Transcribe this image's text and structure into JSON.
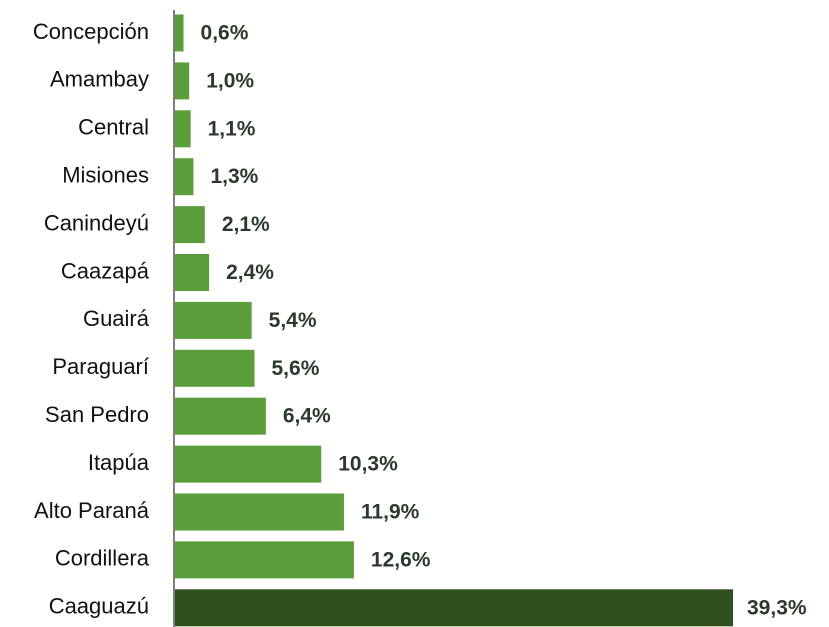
{
  "chart_data": {
    "type": "bar",
    "orientation": "horizontal",
    "title": "",
    "xlabel": "",
    "ylabel": "",
    "unit": "%",
    "categories": [
      "Concepción",
      "Amambay",
      "Central",
      "Misiones",
      "Canindeyú",
      "Caazapá",
      "Guairá",
      "Paraguarí",
      "San Pedro",
      "Itapúa",
      "Alto Paraná",
      "Cordillera",
      "Caaguazú"
    ],
    "values": [
      0.6,
      1.0,
      1.1,
      1.3,
      2.1,
      2.4,
      5.4,
      5.6,
      6.4,
      10.3,
      11.9,
      12.6,
      39.3
    ],
    "value_labels": [
      "0,6%",
      "1,0%",
      "1,1%",
      "1,3%",
      "2,1%",
      "2,4%",
      "5,4%",
      "5,6%",
      "6,4%",
      "10,3%",
      "11,9%",
      "12,6%",
      "39,3%"
    ],
    "xlim": [
      0,
      39.3
    ],
    "grid": false,
    "legend": "none",
    "colors": {
      "default_bar": "#5a9e3c",
      "highlight_bar": "#2f4f1d",
      "axis": "#7f7f7f",
      "value_text": "#2b3a2b",
      "category_text": "#111111"
    },
    "highlight_index": 12
  }
}
